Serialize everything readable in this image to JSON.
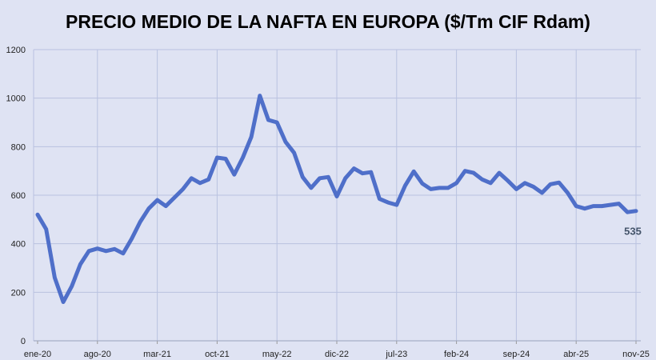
{
  "chart_data": {
    "type": "line",
    "title": "PRECIO MEDIO DE LA NAFTA EN EUROPA ($/Tm CIF Rdam)",
    "xlabel": "",
    "ylabel": "",
    "ylim": [
      0,
      1200
    ],
    "yticks": [
      0,
      200,
      400,
      600,
      800,
      1000,
      1200
    ],
    "xtick_labels": [
      "ene-20",
      "ago-20",
      "mar-21",
      "oct-21",
      "may-22",
      "dic-22",
      "jul-23",
      "feb-24",
      "sep-24",
      "abr-25",
      "nov-25"
    ],
    "grid": true,
    "line_color": "#4f6fc9",
    "series": [
      {
        "name": "",
        "values": [
          520,
          460,
          260,
          160,
          225,
          315,
          370,
          380,
          370,
          378,
          360,
          420,
          490,
          545,
          580,
          555,
          590,
          625,
          670,
          650,
          665,
          755,
          750,
          685,
          755,
          840,
          1010,
          910,
          900,
          820,
          775,
          675,
          630,
          670,
          675,
          595,
          670,
          710,
          690,
          695,
          585,
          570,
          560,
          640,
          698,
          648,
          625,
          630,
          630,
          650,
          700,
          692,
          665,
          650,
          692,
          660,
          625,
          650,
          635,
          610,
          645,
          652,
          610,
          555,
          545,
          555,
          555,
          560,
          565,
          530,
          535
        ]
      }
    ],
    "annotations": [
      {
        "text": "535"
      }
    ]
  }
}
